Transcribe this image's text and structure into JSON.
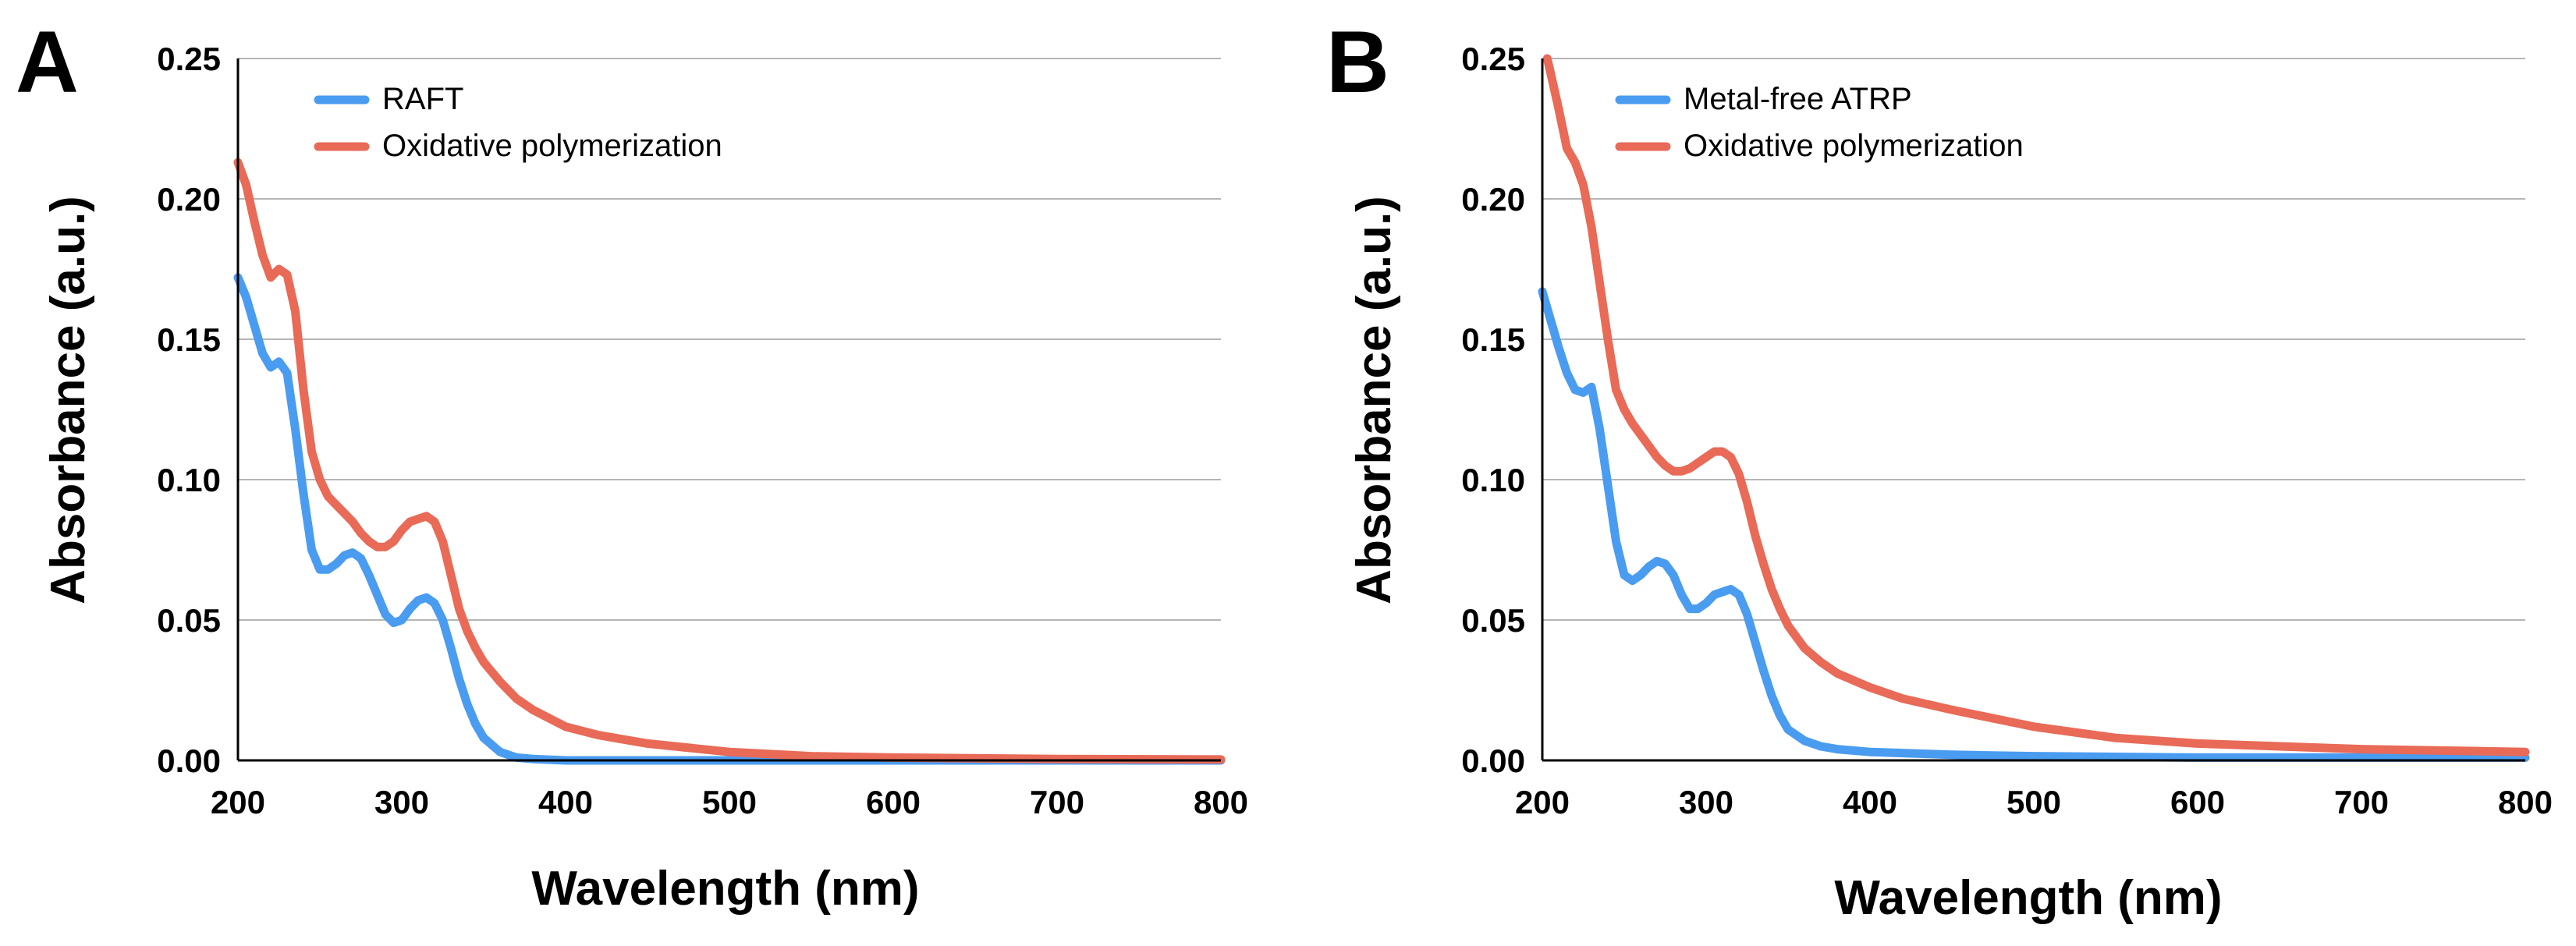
{
  "colors": {
    "series_blue": "#4a9cf0",
    "series_red": "#e86a57",
    "gridline": "#b5b5b5",
    "axis": "#000000",
    "text": "#000000"
  },
  "chart_data": [
    {
      "type": "line",
      "panel_label": "A",
      "title": "",
      "xlabel": "Wavelength (nm)",
      "ylabel": "Absorbance (a.u.)",
      "xlim": [
        200,
        800
      ],
      "ylim": [
        0,
        0.25
      ],
      "x_ticks": [
        200,
        300,
        400,
        500,
        600,
        700,
        800
      ],
      "x_tick_labels": [
        "200",
        "300",
        "400",
        "500",
        "600",
        "700",
        "800"
      ],
      "y_ticks": [
        0,
        0.05,
        0.1,
        0.15,
        0.2,
        0.25
      ],
      "y_tick_labels": [
        "0.00",
        "0.05",
        "0.10",
        "0.15",
        "0.20",
        "0.25"
      ],
      "grid": "horizontal",
      "legend_position": "top-left",
      "series": [
        {
          "name": "RAFT",
          "color": "#4a9cf0",
          "x": [
            200,
            205,
            210,
            215,
            220,
            225,
            230,
            235,
            240,
            245,
            250,
            255,
            260,
            265,
            270,
            275,
            280,
            285,
            290,
            295,
            300,
            305,
            310,
            315,
            320,
            325,
            330,
            335,
            340,
            345,
            350,
            360,
            370,
            380,
            400,
            450,
            500,
            600,
            700,
            800
          ],
          "y": [
            0.172,
            0.165,
            0.155,
            0.145,
            0.14,
            0.142,
            0.138,
            0.118,
            0.095,
            0.075,
            0.068,
            0.068,
            0.07,
            0.073,
            0.074,
            0.072,
            0.066,
            0.059,
            0.052,
            0.049,
            0.05,
            0.054,
            0.057,
            0.058,
            0.056,
            0.05,
            0.04,
            0.029,
            0.02,
            0.013,
            0.008,
            0.003,
            0.001,
            0.0005,
            0.0,
            0.0,
            0.0,
            0.0,
            0.0,
            0.0
          ]
        },
        {
          "name": "Oxidative polymerization",
          "color": "#e86a57",
          "x": [
            200,
            205,
            210,
            215,
            220,
            225,
            230,
            235,
            240,
            245,
            250,
            255,
            260,
            265,
            270,
            275,
            280,
            285,
            290,
            295,
            300,
            305,
            310,
            315,
            320,
            325,
            330,
            335,
            340,
            345,
            350,
            360,
            370,
            380,
            400,
            420,
            450,
            500,
            550,
            600,
            700,
            800
          ],
          "y": [
            0.213,
            0.205,
            0.192,
            0.18,
            0.172,
            0.175,
            0.173,
            0.16,
            0.132,
            0.11,
            0.1,
            0.094,
            0.091,
            0.088,
            0.085,
            0.081,
            0.078,
            0.076,
            0.076,
            0.078,
            0.082,
            0.085,
            0.086,
            0.087,
            0.085,
            0.078,
            0.066,
            0.054,
            0.046,
            0.04,
            0.035,
            0.028,
            0.022,
            0.018,
            0.012,
            0.009,
            0.006,
            0.003,
            0.0015,
            0.001,
            0.0005,
            0.0003
          ]
        }
      ]
    },
    {
      "type": "line",
      "panel_label": "B",
      "title": "",
      "xlabel": "Wavelength (nm)",
      "ylabel": "Absorbance (a.u.)",
      "xlim": [
        200,
        800
      ],
      "ylim": [
        0,
        0.25
      ],
      "x_ticks": [
        200,
        300,
        400,
        500,
        600,
        700,
        800
      ],
      "x_tick_labels": [
        "200",
        "300",
        "400",
        "500",
        "600",
        "700",
        "800"
      ],
      "y_ticks": [
        0,
        0.05,
        0.1,
        0.15,
        0.2,
        0.25
      ],
      "y_tick_labels": [
        "0.00",
        "0.05",
        "0.10",
        "0.15",
        "0.20",
        "0.25"
      ],
      "grid": "horizontal",
      "legend_position": "top-left",
      "series": [
        {
          "name": "Metal-free ATRP",
          "color": "#4a9cf0",
          "x": [
            200,
            205,
            210,
            215,
            220,
            225,
            230,
            235,
            240,
            245,
            250,
            255,
            260,
            265,
            270,
            275,
            280,
            285,
            290,
            295,
            300,
            305,
            310,
            315,
            320,
            325,
            330,
            335,
            340,
            345,
            350,
            360,
            370,
            380,
            400,
            450,
            500,
            600,
            700,
            800
          ],
          "y": [
            0.167,
            0.157,
            0.147,
            0.138,
            0.132,
            0.131,
            0.133,
            0.118,
            0.098,
            0.078,
            0.066,
            0.064,
            0.066,
            0.069,
            0.071,
            0.07,
            0.066,
            0.059,
            0.054,
            0.054,
            0.056,
            0.059,
            0.06,
            0.061,
            0.059,
            0.052,
            0.042,
            0.032,
            0.023,
            0.016,
            0.011,
            0.007,
            0.005,
            0.004,
            0.003,
            0.002,
            0.0015,
            0.001,
            0.001,
            0.001
          ]
        },
        {
          "name": "Oxidative polymerization",
          "color": "#e86a57",
          "x": [
            203,
            205,
            210,
            215,
            220,
            225,
            230,
            235,
            240,
            245,
            250,
            255,
            260,
            265,
            270,
            275,
            280,
            285,
            290,
            295,
            300,
            305,
            310,
            315,
            320,
            325,
            330,
            335,
            340,
            345,
            350,
            360,
            370,
            380,
            400,
            420,
            450,
            500,
            550,
            600,
            650,
            700,
            800
          ],
          "y": [
            0.25,
            0.245,
            0.232,
            0.218,
            0.213,
            0.205,
            0.19,
            0.17,
            0.15,
            0.132,
            0.125,
            0.12,
            0.116,
            0.112,
            0.108,
            0.105,
            0.103,
            0.103,
            0.104,
            0.106,
            0.108,
            0.11,
            0.11,
            0.108,
            0.102,
            0.092,
            0.08,
            0.07,
            0.061,
            0.054,
            0.048,
            0.04,
            0.035,
            0.031,
            0.026,
            0.022,
            0.018,
            0.012,
            0.008,
            0.006,
            0.005,
            0.004,
            0.003
          ]
        }
      ]
    }
  ]
}
